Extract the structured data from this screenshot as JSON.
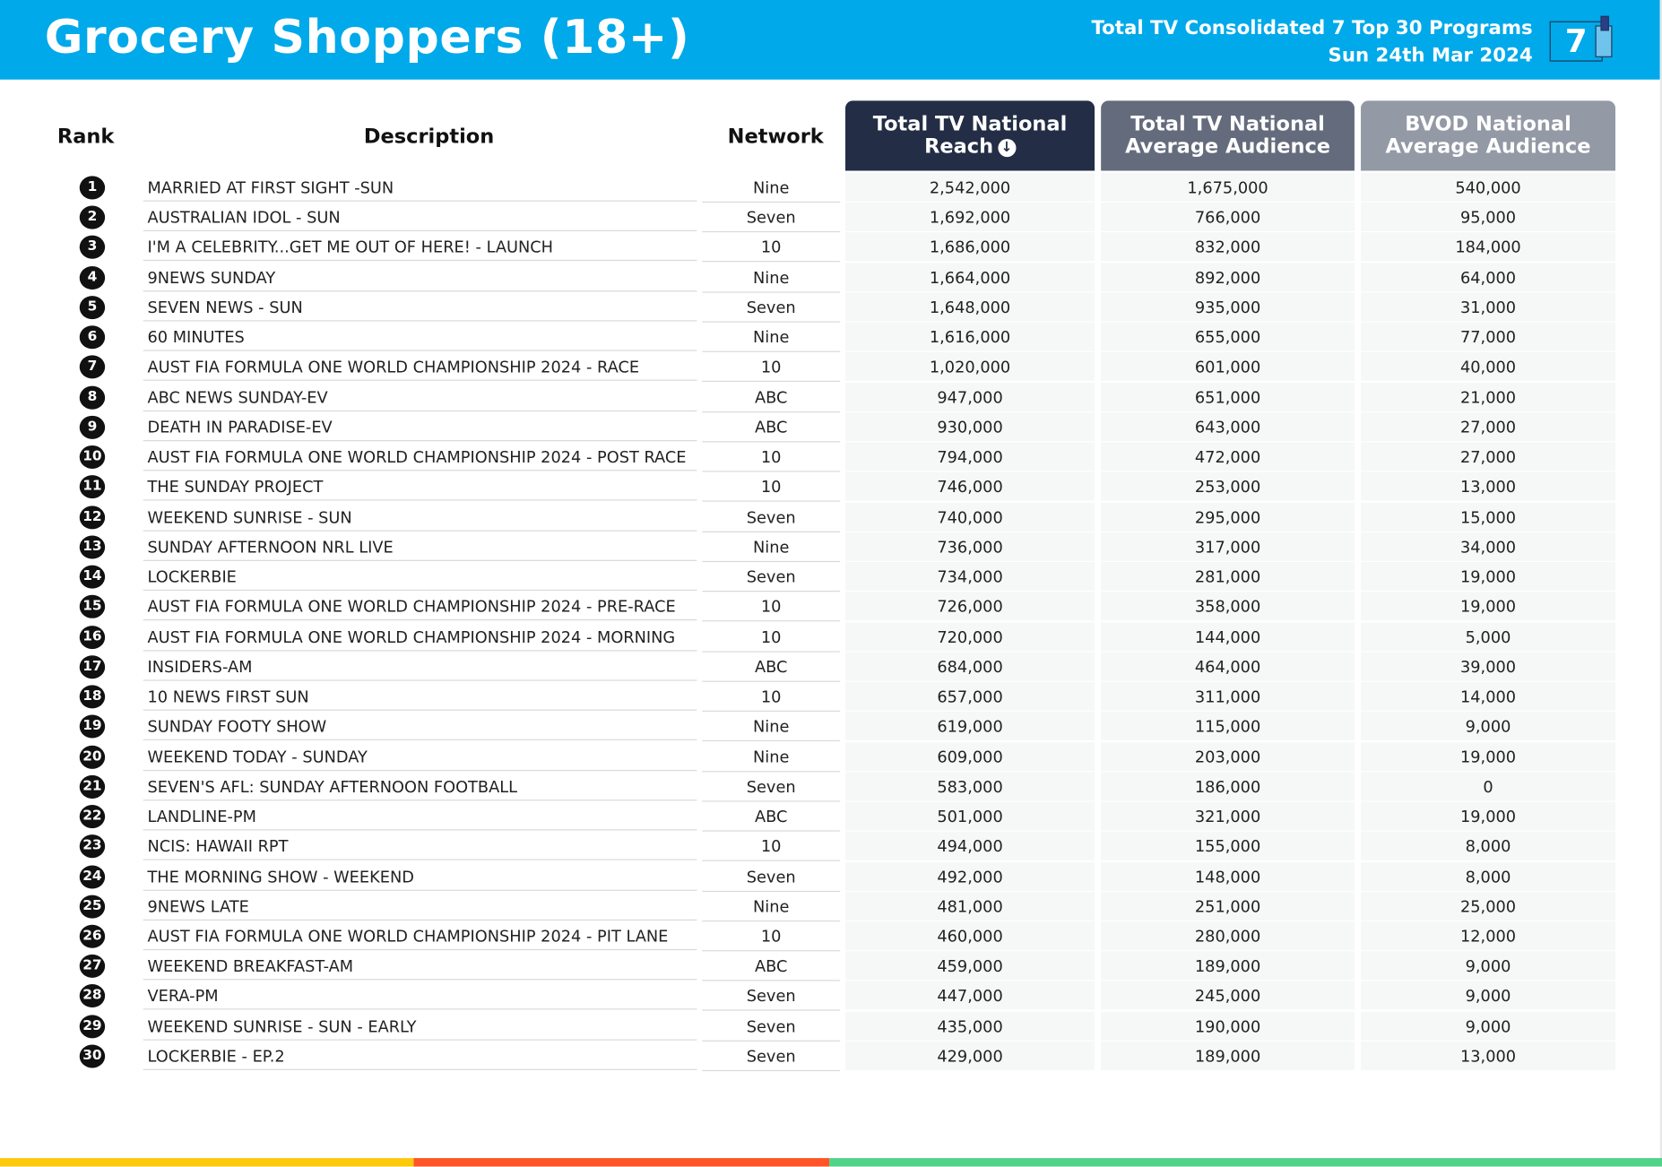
{
  "header": {
    "title": "Grocery Shoppers (18+)",
    "subtitle": "Total TV Consolidated 7 Top 30 Programs",
    "date": "Sun 24th Mar 2024",
    "logo_text": "7"
  },
  "columns": {
    "rank": "Rank",
    "description": "Description",
    "network": "Network",
    "reach_line1": "Total TV National",
    "reach_line2": "Reach",
    "avg_line1": "Total TV National",
    "avg_line2": "Average Audience",
    "bvod_line1": "BVOD National",
    "bvod_line2": "Average Audience",
    "sort_icon": "arrow-down-circle-icon"
  },
  "colors": {
    "brand": "#00a9e9",
    "col1": "#232d45",
    "col2": "#646b7c",
    "col3": "#9399a5",
    "footer": [
      "#fcc90d",
      "#ff5528",
      "#52d38a"
    ]
  },
  "rows": [
    {
      "rank": "1",
      "desc": "MARRIED AT FIRST SIGHT -SUN",
      "net": "Nine",
      "reach": "2,542,000",
      "avg": "1,675,000",
      "bvod": "540,000"
    },
    {
      "rank": "2",
      "desc": "AUSTRALIAN IDOL - SUN",
      "net": "Seven",
      "reach": "1,692,000",
      "avg": "766,000",
      "bvod": "95,000"
    },
    {
      "rank": "3",
      "desc": "I'M A CELEBRITY...GET ME OUT OF HERE! - LAUNCH",
      "net": "10",
      "reach": "1,686,000",
      "avg": "832,000",
      "bvod": "184,000"
    },
    {
      "rank": "4",
      "desc": "9NEWS SUNDAY",
      "net": "Nine",
      "reach": "1,664,000",
      "avg": "892,000",
      "bvod": "64,000"
    },
    {
      "rank": "5",
      "desc": "SEVEN NEWS - SUN",
      "net": "Seven",
      "reach": "1,648,000",
      "avg": "935,000",
      "bvod": "31,000"
    },
    {
      "rank": "6",
      "desc": "60 MINUTES",
      "net": "Nine",
      "reach": "1,616,000",
      "avg": "655,000",
      "bvod": "77,000"
    },
    {
      "rank": "7",
      "desc": "AUST FIA FORMULA ONE WORLD CHAMPIONSHIP 2024 - RACE",
      "net": "10",
      "reach": "1,020,000",
      "avg": "601,000",
      "bvod": "40,000"
    },
    {
      "rank": "8",
      "desc": "ABC NEWS SUNDAY-EV",
      "net": "ABC",
      "reach": "947,000",
      "avg": "651,000",
      "bvod": "21,000"
    },
    {
      "rank": "9",
      "desc": "DEATH IN PARADISE-EV",
      "net": "ABC",
      "reach": "930,000",
      "avg": "643,000",
      "bvod": "27,000"
    },
    {
      "rank": "10",
      "desc": "AUST FIA FORMULA ONE WORLD CHAMPIONSHIP 2024 - POST RACE",
      "net": "10",
      "reach": "794,000",
      "avg": "472,000",
      "bvod": "27,000"
    },
    {
      "rank": "11",
      "desc": "THE SUNDAY PROJECT",
      "net": "10",
      "reach": "746,000",
      "avg": "253,000",
      "bvod": "13,000"
    },
    {
      "rank": "12",
      "desc": "WEEKEND SUNRISE - SUN",
      "net": "Seven",
      "reach": "740,000",
      "avg": "295,000",
      "bvod": "15,000"
    },
    {
      "rank": "13",
      "desc": "SUNDAY AFTERNOON NRL LIVE",
      "net": "Nine",
      "reach": "736,000",
      "avg": "317,000",
      "bvod": "34,000"
    },
    {
      "rank": "14",
      "desc": "LOCKERBIE",
      "net": "Seven",
      "reach": "734,000",
      "avg": "281,000",
      "bvod": "19,000"
    },
    {
      "rank": "15",
      "desc": "AUST FIA FORMULA ONE WORLD CHAMPIONSHIP 2024 - PRE-RACE",
      "net": "10",
      "reach": "726,000",
      "avg": "358,000",
      "bvod": "19,000"
    },
    {
      "rank": "16",
      "desc": "AUST FIA FORMULA ONE WORLD CHAMPIONSHIP 2024 - MORNING",
      "net": "10",
      "reach": "720,000",
      "avg": "144,000",
      "bvod": "5,000"
    },
    {
      "rank": "17",
      "desc": "INSIDERS-AM",
      "net": "ABC",
      "reach": "684,000",
      "avg": "464,000",
      "bvod": "39,000"
    },
    {
      "rank": "18",
      "desc": "10 NEWS FIRST SUN",
      "net": "10",
      "reach": "657,000",
      "avg": "311,000",
      "bvod": "14,000"
    },
    {
      "rank": "19",
      "desc": "SUNDAY FOOTY SHOW",
      "net": "Nine",
      "reach": "619,000",
      "avg": "115,000",
      "bvod": "9,000"
    },
    {
      "rank": "20",
      "desc": "WEEKEND TODAY - SUNDAY",
      "net": "Nine",
      "reach": "609,000",
      "avg": "203,000",
      "bvod": "19,000"
    },
    {
      "rank": "21",
      "desc": "SEVEN'S AFL: SUNDAY AFTERNOON FOOTBALL",
      "net": "Seven",
      "reach": "583,000",
      "avg": "186,000",
      "bvod": "0"
    },
    {
      "rank": "22",
      "desc": "LANDLINE-PM",
      "net": "ABC",
      "reach": "501,000",
      "avg": "321,000",
      "bvod": "19,000"
    },
    {
      "rank": "23",
      "desc": "NCIS: HAWAII RPT",
      "net": "10",
      "reach": "494,000",
      "avg": "155,000",
      "bvod": "8,000"
    },
    {
      "rank": "24",
      "desc": "THE MORNING SHOW - WEEKEND",
      "net": "Seven",
      "reach": "492,000",
      "avg": "148,000",
      "bvod": "8,000"
    },
    {
      "rank": "25",
      "desc": "9NEWS LATE",
      "net": "Nine",
      "reach": "481,000",
      "avg": "251,000",
      "bvod": "25,000"
    },
    {
      "rank": "26",
      "desc": "AUST FIA FORMULA ONE WORLD CHAMPIONSHIP 2024 - PIT LANE",
      "net": "10",
      "reach": "460,000",
      "avg": "280,000",
      "bvod": "12,000"
    },
    {
      "rank": "27",
      "desc": "WEEKEND BREAKFAST-AM",
      "net": "ABC",
      "reach": "459,000",
      "avg": "189,000",
      "bvod": "9,000"
    },
    {
      "rank": "28",
      "desc": "VERA-PM",
      "net": "Seven",
      "reach": "447,000",
      "avg": "245,000",
      "bvod": "9,000"
    },
    {
      "rank": "29",
      "desc": "WEEKEND SUNRISE - SUN - EARLY",
      "net": "Seven",
      "reach": "435,000",
      "avg": "190,000",
      "bvod": "9,000"
    },
    {
      "rank": "30",
      "desc": "LOCKERBIE - EP.2",
      "net": "Seven",
      "reach": "429,000",
      "avg": "189,000",
      "bvod": "13,000"
    }
  ]
}
